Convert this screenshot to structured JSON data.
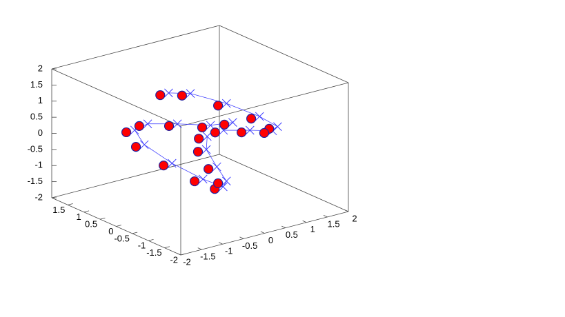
{
  "chart_data": {
    "type": "scatter3d",
    "xlim": [
      -2,
      2
    ],
    "ylim": [
      -2,
      2
    ],
    "zlim": [
      -2,
      2
    ],
    "xticks": [
      -2,
      -1.5,
      -1,
      -0.5,
      0,
      0.5,
      1,
      1.5,
      2
    ],
    "yticks": [
      -2,
      -1.5,
      -1,
      -0.5,
      0,
      0.5,
      1,
      1.5
    ],
    "zticks": [
      -2,
      -1.5,
      -1,
      -0.5,
      0,
      0.5,
      1,
      1.5,
      2
    ],
    "series": [
      {
        "marker": "circle",
        "color": "#ff0000",
        "edge_color": "#2020a0",
        "x": [
          -0.95,
          -0.43,
          0.43,
          1.22,
          1.65,
          1.53,
          0.99,
          0.36,
          0.58,
          0.05,
          -0.74,
          -1.45,
          -1.76,
          -1.53,
          -0.87,
          -0.13,
          0.35,
          0.43,
          0.2,
          -0.05,
          -0.03
        ],
        "y": [
          0,
          0,
          0,
          0,
          0,
          0,
          0,
          0,
          0,
          0,
          0,
          0,
          0,
          0,
          0,
          0,
          0,
          0,
          0,
          0,
          0
        ],
        "z": [
          1.72,
          1.53,
          0.93,
          0.26,
          -0.2,
          -0.29,
          -0.09,
          0.12,
          0.29,
          0.38,
          0.69,
          0.93,
          0.84,
          0.31,
          -0.49,
          -1.23,
          -1.63,
          -1.48,
          -0.96,
          -0.34,
          0.06
        ]
      },
      {
        "marker": "x",
        "line": true,
        "color": "#4040ff",
        "x": [
          -0.75,
          -0.23,
          0.63,
          1.42,
          1.85,
          1.73,
          1.19,
          0.56,
          0.78,
          0.25,
          -0.54,
          -1.25,
          -1.56,
          -1.33,
          -0.67,
          0.07,
          0.55,
          0.63,
          0.4,
          0.15,
          0.17
        ],
        "y": [
          0,
          0,
          0,
          0,
          0,
          0,
          0,
          0,
          0,
          0,
          0,
          0,
          0,
          0,
          0,
          0,
          0,
          0,
          0,
          0,
          0
        ],
        "z": [
          1.72,
          1.53,
          0.93,
          0.26,
          -0.2,
          -0.29,
          -0.09,
          0.12,
          0.29,
          0.38,
          0.69,
          0.93,
          0.84,
          0.31,
          -0.49,
          -1.23,
          -1.63,
          -1.48,
          -0.96,
          -0.34,
          0.06
        ]
      }
    ]
  }
}
